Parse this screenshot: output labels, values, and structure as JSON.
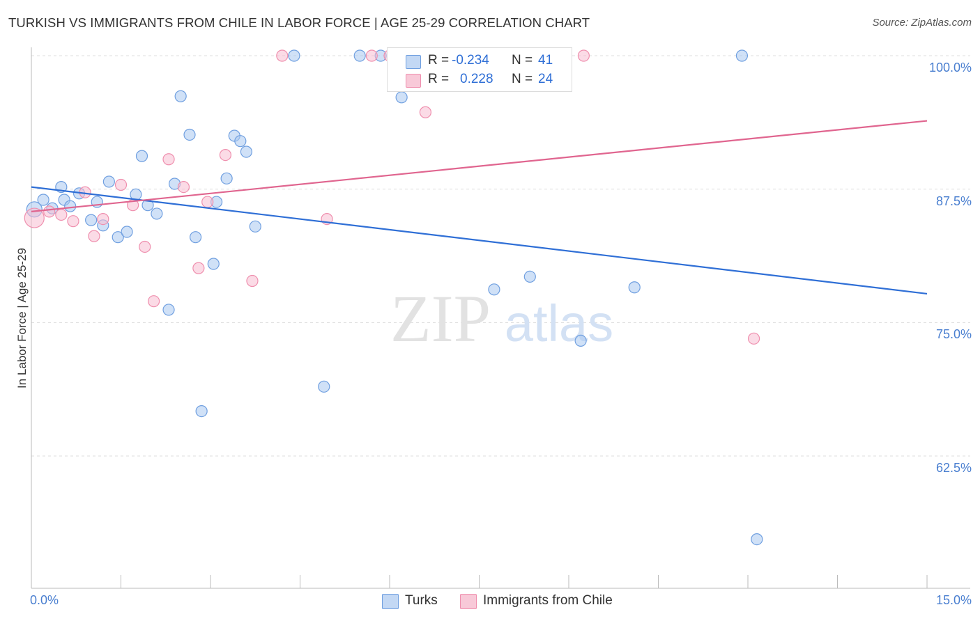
{
  "title": "TURKISH VS IMMIGRANTS FROM CHILE IN LABOR FORCE | AGE 25-29 CORRELATION CHART",
  "source": "Source: ZipAtlas.com",
  "watermark": {
    "zip": "ZIP",
    "atlas": "atlas"
  },
  "colors": {
    "turks": "#6f9fe0",
    "chile": "#ef8fae",
    "turks_line": "#2f6fd6",
    "chile_line": "#e0658f",
    "axis_text": "#4a7fd0"
  },
  "stats": {
    "turks": {
      "r_label": "R =",
      "r": "-0.234",
      "n_label": "N =",
      "n": "41"
    },
    "chile": {
      "r_label": "R =",
      "r": "0.228",
      "n_label": "N =",
      "n": "24"
    }
  },
  "legend": {
    "turks": "Turks",
    "chile": "Immigrants from Chile"
  },
  "chart_data": {
    "type": "scatter",
    "title": "TURKISH VS IMMIGRANTS FROM CHILE IN LABOR FORCE | AGE 25-29 CORRELATION CHART",
    "xlabel": "",
    "ylabel": "In Labor Force | Age 25-29",
    "xlim": [
      0,
      15
    ],
    "ylim": [
      50,
      100
    ],
    "x_tick_labels": [
      "0.0%",
      "15.0%"
    ],
    "y_ticks": [
      62.5,
      75.0,
      87.5,
      100.0
    ],
    "y_tick_labels": [
      "62.5%",
      "75.0%",
      "87.5%",
      "100.0%"
    ],
    "series": [
      {
        "name": "Turks",
        "points": [
          [
            0.05,
            85.6
          ],
          [
            0.2,
            86.5
          ],
          [
            0.35,
            85.7
          ],
          [
            0.5,
            87.7
          ],
          [
            0.55,
            86.5
          ],
          [
            0.65,
            85.9
          ],
          [
            0.8,
            87.1
          ],
          [
            1.0,
            84.6
          ],
          [
            1.1,
            86.3
          ],
          [
            1.2,
            84.1
          ],
          [
            1.3,
            88.2
          ],
          [
            1.45,
            83.0
          ],
          [
            1.6,
            83.5
          ],
          [
            1.75,
            87.0
          ],
          [
            1.85,
            90.6
          ],
          [
            1.95,
            86.0
          ],
          [
            2.1,
            85.2
          ],
          [
            2.3,
            76.2
          ],
          [
            2.4,
            88.0
          ],
          [
            2.5,
            96.2
          ],
          [
            2.65,
            92.6
          ],
          [
            2.75,
            83.0
          ],
          [
            3.05,
            80.5
          ],
          [
            3.1,
            86.3
          ],
          [
            3.27,
            88.5
          ],
          [
            3.4,
            92.5
          ],
          [
            3.5,
            92.0
          ],
          [
            3.6,
            91.0
          ],
          [
            3.75,
            84.0
          ],
          [
            4.9,
            69.0
          ],
          [
            5.5,
            100.0
          ],
          [
            5.85,
            100.0
          ],
          [
            6.2,
            96.1
          ],
          [
            2.85,
            66.7
          ],
          [
            7.75,
            78.1
          ],
          [
            8.35,
            79.3
          ],
          [
            9.2,
            73.3
          ],
          [
            10.1,
            78.3
          ],
          [
            11.9,
            100.0
          ],
          [
            12.15,
            54.7
          ],
          [
            4.4,
            100.0
          ]
        ]
      },
      {
        "name": "Immigrants from Chile",
        "points": [
          [
            0.05,
            84.8
          ],
          [
            0.3,
            85.4
          ],
          [
            0.5,
            85.1
          ],
          [
            0.7,
            84.5
          ],
          [
            0.9,
            87.2
          ],
          [
            1.05,
            83.1
          ],
          [
            1.2,
            84.7
          ],
          [
            1.5,
            87.9
          ],
          [
            1.7,
            86.0
          ],
          [
            1.9,
            82.1
          ],
          [
            2.05,
            77.0
          ],
          [
            2.3,
            90.3
          ],
          [
            2.55,
            87.7
          ],
          [
            2.8,
            80.1
          ],
          [
            2.95,
            86.3
          ],
          [
            3.25,
            90.7
          ],
          [
            3.7,
            78.9
          ],
          [
            4.2,
            100.0
          ],
          [
            4.95,
            84.7
          ],
          [
            5.7,
            100.0
          ],
          [
            6.0,
            100.0
          ],
          [
            6.6,
            94.7
          ],
          [
            9.25,
            100.0
          ],
          [
            12.1,
            73.5
          ]
        ]
      }
    ],
    "trendlines": [
      {
        "series": "Turks",
        "x": [
          0,
          15
        ],
        "y": [
          87.7,
          77.7
        ]
      },
      {
        "series": "Immigrants from Chile",
        "x": [
          0,
          15
        ],
        "y": [
          85.4,
          93.9
        ]
      }
    ]
  }
}
